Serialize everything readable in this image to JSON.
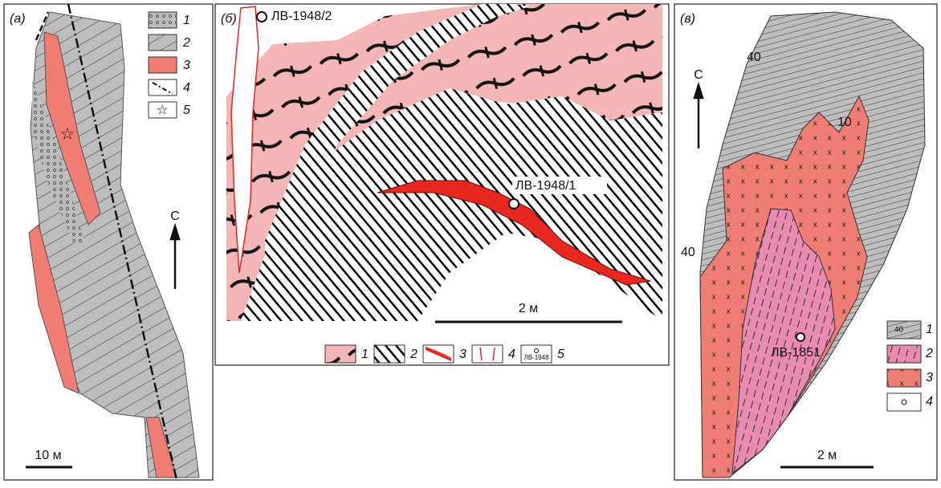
{
  "panels": [
    {
      "label": "(а)",
      "north": "С",
      "scale": "10 м",
      "legend": [
        "1",
        "2",
        "3",
        "4",
        "5"
      ]
    },
    {
      "label": "(б)",
      "samples": [
        "ЛВ-1948/2",
        "ЛВ-1948/1"
      ],
      "scale": "2 м",
      "legend": [
        "1",
        "2",
        "3",
        "4",
        "5"
      ],
      "legend_icon_text": "ЛВ-1948"
    },
    {
      "label": "(в)",
      "north": "С",
      "dips": [
        "40",
        "10",
        "40"
      ],
      "sample": "ЛВ-1851",
      "scale": "2 м",
      "legend": [
        "1",
        "2",
        "3",
        "4"
      ],
      "legend_icon_text": "40"
    }
  ]
}
